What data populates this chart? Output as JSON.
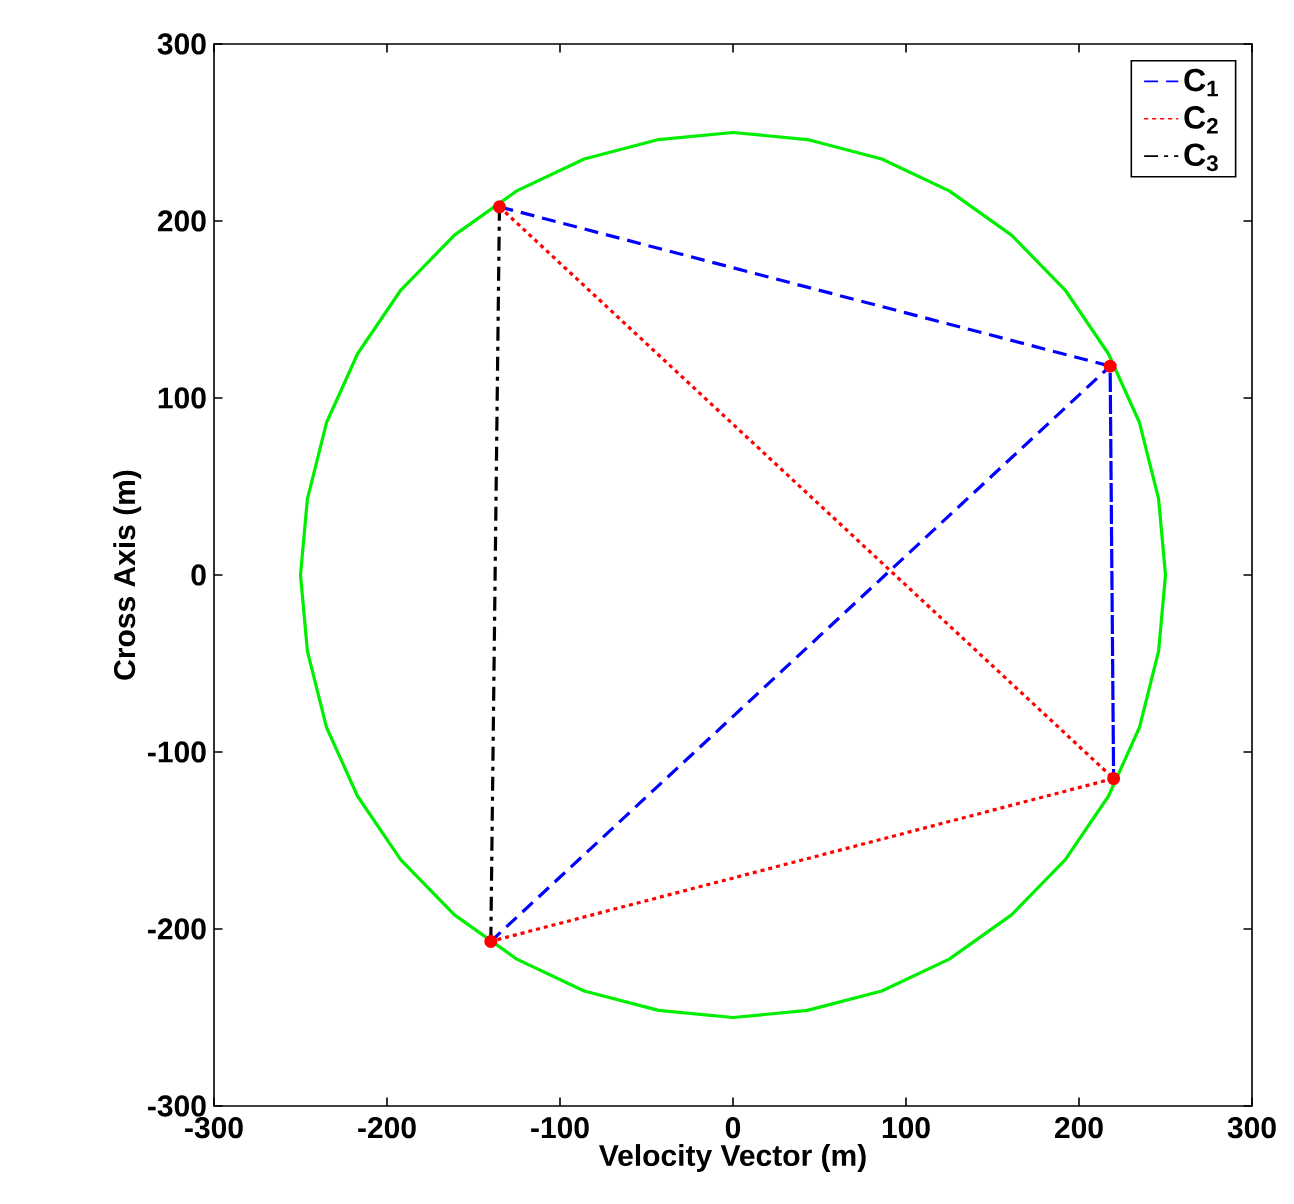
{
  "chart_data": {
    "type": "line",
    "xlabel": "Velocity Vector (m)",
    "ylabel": "Cross Axis (m)",
    "xlim": [
      -300,
      300
    ],
    "ylim": [
      -300,
      300
    ],
    "xticks": [
      -300,
      -200,
      -100,
      0,
      100,
      200,
      300
    ],
    "yticks": [
      -300,
      -200,
      -100,
      0,
      100,
      200,
      300
    ],
    "grid": false,
    "legend": "top right",
    "series": [
      {
        "name": "C$_{1}$",
        "color": "#0000ff",
        "line_style": "dashed",
        "marker": "none",
        "x": [
          -135,
          218,
          220,
          218,
          -140
        ],
        "values": [
          208,
          118,
          -115,
          118,
          -207
        ]
      },
      {
        "name": "C$_{2}$",
        "color": "#ff0000",
        "line_style": "dotted",
        "marker": "none",
        "x": [
          -135,
          220,
          -140
        ],
        "values": [
          208,
          -115,
          -207
        ]
      },
      {
        "name": "C$_{3}$",
        "color": "#000000",
        "line_style": "dashdot",
        "marker": "none",
        "x": [
          -135,
          -140
        ],
        "values": [
          208,
          -207
        ]
      },
      {
        "color": "#00ee00",
        "line_style": "solid",
        "marker": "none",
        "x": [
          250,
          246,
          235,
          217,
          192,
          161,
          125,
          86,
          43,
          0,
          -43,
          -86,
          -125,
          -161,
          -192,
          -217,
          -235,
          -246,
          -250,
          -246,
          -235,
          -217,
          -192,
          -161,
          -125,
          -86,
          -43,
          0,
          43,
          86,
          125,
          161,
          192,
          217,
          235,
          246,
          250,
          246
        ],
        "values": [
          0,
          43,
          86,
          125,
          161,
          192,
          217,
          235,
          246,
          250,
          246,
          235,
          217,
          192,
          161,
          125,
          86,
          43,
          0,
          -43,
          -86,
          -125,
          -161,
          -192,
          -217,
          -235,
          -246,
          -250,
          -246,
          -235,
          -217,
          -192,
          -161,
          -125,
          -86,
          -43,
          0,
          43
        ]
      },
      {
        "type": "scatter",
        "color": "#ff0000",
        "marker": "circle",
        "x": [
          -135,
          218,
          220,
          -140
        ],
        "values": [
          208,
          118,
          -115,
          -207
        ]
      }
    ]
  }
}
